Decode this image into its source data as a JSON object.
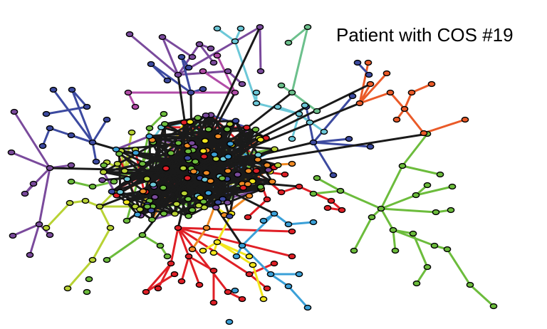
{
  "title": "Patient with COS #19",
  "colors": {
    "core": "#1a1a1a",
    "navy": "#3c4aa0",
    "purple": "#7a4a9c",
    "magenta": "#b24ca8",
    "cyan": "#6cc8d8",
    "teal": "#6cc08c",
    "orange": "#f08a24",
    "red_orange": "#ea5a28",
    "red": "#e01f26",
    "yellow": "#f2e61c",
    "light_blue": "#3aa0d8",
    "green": "#6cbc3c",
    "lime": "#b8d234"
  }
}
